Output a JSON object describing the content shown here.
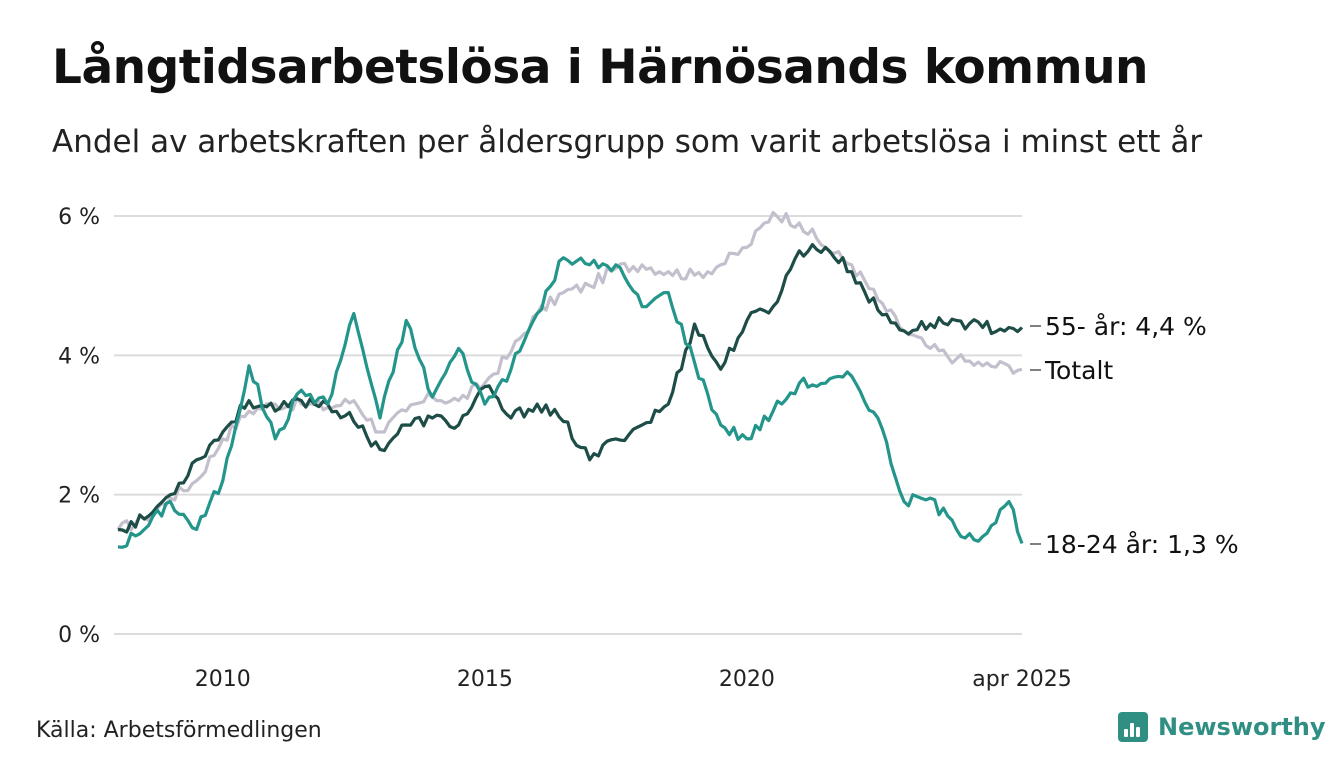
{
  "header": {
    "title": "Långtidsarbetslösa i Härnösands kommun",
    "subtitle": "Andel av arbetskraften per åldersgrupp som varit arbetslösa i minst ett år"
  },
  "footer": {
    "source": "Källa: Arbetsförmedlingen",
    "brand": "Newsworthy"
  },
  "colors": {
    "total": "#c3bfcc",
    "age55": "#1e4d47",
    "age18_24": "#23958a",
    "grid": "#dcdcdc",
    "brand": "#2f8f83"
  },
  "chart_data": {
    "type": "line",
    "title": "Långtidsarbetslösa i Härnösands kommun",
    "subtitle": "Andel av arbetskraften per åldersgrupp som varit arbetslösa i minst ett år",
    "xlabel": "",
    "ylabel": "",
    "x_range": [
      "2008-01",
      "2025-04"
    ],
    "x_tick_labels": [
      {
        "date": "2010-01",
        "label": "2010"
      },
      {
        "date": "2015-01",
        "label": "2015"
      },
      {
        "date": "2020-01",
        "label": "2020"
      },
      {
        "date": "2025-04",
        "label": "apr 2025"
      }
    ],
    "y_range": [
      0,
      6
    ],
    "y_ticks": [
      {
        "value": 0,
        "label": "0 %"
      },
      {
        "value": 2,
        "label": "2 %"
      },
      {
        "value": 4,
        "label": "4 %"
      },
      {
        "value": 6,
        "label": "6 %"
      }
    ],
    "grid": "horizontal",
    "legend": "end-of-line labels",
    "series": [
      {
        "name": "Totalt",
        "label": "Totalt",
        "color_key": "total",
        "points": [
          [
            "2008-01",
            1.5
          ],
          [
            "2008-07",
            1.65
          ],
          [
            "2009-01",
            1.95
          ],
          [
            "2009-07",
            2.2
          ],
          [
            "2010-01",
            2.8
          ],
          [
            "2010-07",
            3.2
          ],
          [
            "2011-01",
            3.3
          ],
          [
            "2011-07",
            3.3
          ],
          [
            "2012-01",
            3.25
          ],
          [
            "2012-07",
            3.35
          ],
          [
            "2013-01",
            2.9
          ],
          [
            "2013-07",
            3.2
          ],
          [
            "2014-01",
            3.4
          ],
          [
            "2014-07",
            3.35
          ],
          [
            "2015-01",
            3.6
          ],
          [
            "2015-07",
            4.05
          ],
          [
            "2016-01",
            4.6
          ],
          [
            "2016-07",
            4.9
          ],
          [
            "2017-01",
            5.0
          ],
          [
            "2017-07",
            5.25
          ],
          [
            "2018-01",
            5.3
          ],
          [
            "2018-07",
            5.2
          ],
          [
            "2019-01",
            5.15
          ],
          [
            "2019-07",
            5.3
          ],
          [
            "2020-01",
            5.55
          ],
          [
            "2020-07",
            6.05
          ],
          [
            "2021-01",
            5.9
          ],
          [
            "2021-07",
            5.55
          ],
          [
            "2022-01",
            5.3
          ],
          [
            "2022-07",
            4.8
          ],
          [
            "2023-01",
            4.35
          ],
          [
            "2023-07",
            4.1
          ],
          [
            "2024-01",
            3.95
          ],
          [
            "2024-07",
            3.85
          ],
          [
            "2025-01",
            3.85
          ],
          [
            "2025-04",
            3.8
          ]
        ]
      },
      {
        "name": "55- år",
        "label": "55- år: 4,4 %",
        "color_key": "age55",
        "points": [
          [
            "2008-01",
            1.5
          ],
          [
            "2008-07",
            1.65
          ],
          [
            "2009-01",
            2.0
          ],
          [
            "2009-07",
            2.5
          ],
          [
            "2010-01",
            2.9
          ],
          [
            "2010-07",
            3.35
          ],
          [
            "2011-01",
            3.2
          ],
          [
            "2011-07",
            3.35
          ],
          [
            "2012-01",
            3.3
          ],
          [
            "2012-07",
            3.05
          ],
          [
            "2013-01",
            2.65
          ],
          [
            "2013-07",
            3.0
          ],
          [
            "2014-01",
            3.1
          ],
          [
            "2014-07",
            3.0
          ],
          [
            "2015-01",
            3.55
          ],
          [
            "2015-07",
            3.1
          ],
          [
            "2016-01",
            3.3
          ],
          [
            "2016-07",
            3.05
          ],
          [
            "2017-01",
            2.5
          ],
          [
            "2017-07",
            2.8
          ],
          [
            "2018-01",
            3.0
          ],
          [
            "2018-07",
            3.3
          ],
          [
            "2019-01",
            4.45
          ],
          [
            "2019-07",
            3.8
          ],
          [
            "2020-01",
            4.5
          ],
          [
            "2020-07",
            4.7
          ],
          [
            "2021-01",
            5.5
          ],
          [
            "2021-07",
            5.55
          ],
          [
            "2022-01",
            5.2
          ],
          [
            "2022-07",
            4.65
          ],
          [
            "2023-01",
            4.35
          ],
          [
            "2023-07",
            4.45
          ],
          [
            "2024-01",
            4.5
          ],
          [
            "2024-07",
            4.4
          ],
          [
            "2025-01",
            4.4
          ],
          [
            "2025-04",
            4.4
          ]
        ]
      },
      {
        "name": "18-24 år",
        "label": "18-24 år: 1,3 %",
        "color_key": "age18_24",
        "points": [
          [
            "2008-01",
            1.25
          ],
          [
            "2008-07",
            1.5
          ],
          [
            "2009-01",
            1.9
          ],
          [
            "2009-07",
            1.5
          ],
          [
            "2010-01",
            2.2
          ],
          [
            "2010-07",
            3.85
          ],
          [
            "2011-01",
            2.8
          ],
          [
            "2011-07",
            3.5
          ],
          [
            "2012-01",
            3.3
          ],
          [
            "2012-07",
            4.6
          ],
          [
            "2013-01",
            3.1
          ],
          [
            "2013-07",
            4.5
          ],
          [
            "2014-01",
            3.4
          ],
          [
            "2014-07",
            4.1
          ],
          [
            "2015-01",
            3.3
          ],
          [
            "2015-07",
            3.8
          ],
          [
            "2016-01",
            4.6
          ],
          [
            "2016-07",
            5.4
          ],
          [
            "2017-01",
            5.3
          ],
          [
            "2017-07",
            5.3
          ],
          [
            "2018-01",
            4.7
          ],
          [
            "2018-07",
            4.9
          ],
          [
            "2019-01",
            3.9
          ],
          [
            "2019-07",
            3.0
          ],
          [
            "2020-01",
            2.8
          ],
          [
            "2020-07",
            3.2
          ],
          [
            "2021-01",
            3.6
          ],
          [
            "2021-07",
            3.6
          ],
          [
            "2022-01",
            3.7
          ],
          [
            "2022-07",
            3.1
          ],
          [
            "2023-01",
            1.9
          ],
          [
            "2023-07",
            1.95
          ],
          [
            "2024-01",
            1.5
          ],
          [
            "2024-07",
            1.4
          ],
          [
            "2025-01",
            1.9
          ],
          [
            "2025-04",
            1.3
          ]
        ]
      }
    ]
  }
}
